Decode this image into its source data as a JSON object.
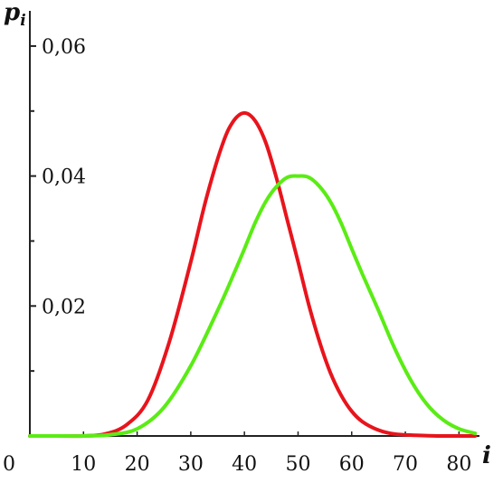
{
  "chart_data": {
    "type": "line",
    "xlabel": "i",
    "ylabel": {
      "base": "p",
      "subscript": "i"
    },
    "origin_label": "0",
    "xlim": [
      0,
      85
    ],
    "ylim": [
      0,
      0.065
    ],
    "x_ticks": [
      {
        "value": 10,
        "label": "10"
      },
      {
        "value": 20,
        "label": "20"
      },
      {
        "value": 30,
        "label": "30"
      },
      {
        "value": 40,
        "label": "40"
      },
      {
        "value": 50,
        "label": "50"
      },
      {
        "value": 60,
        "label": "60"
      },
      {
        "value": 70,
        "label": "70"
      },
      {
        "value": 80,
        "label": "80"
      }
    ],
    "y_ticks": [
      {
        "value": 0.02,
        "label": "0,02"
      },
      {
        "value": 0.04,
        "label": "0,04"
      },
      {
        "value": 0.06,
        "label": "0,06"
      }
    ],
    "y_minor_ticks": [
      0.01,
      0.03,
      0.05
    ],
    "grid": false,
    "series": [
      {
        "color": "#e8141c",
        "x": [
          0,
          5,
          10,
          14,
          18,
          22,
          26,
          30,
          33,
          36,
          38,
          40,
          42,
          44,
          46,
          48,
          50,
          52,
          54,
          56,
          58,
          60,
          62,
          65,
          68,
          72,
          76,
          80,
          83
        ],
        "y": [
          0,
          0,
          0,
          0.0003,
          0.0017,
          0.0055,
          0.0145,
          0.0268,
          0.0369,
          0.0451,
          0.0485,
          0.0497,
          0.0485,
          0.0451,
          0.0396,
          0.0332,
          0.0268,
          0.0202,
          0.0145,
          0.0098,
          0.0063,
          0.0038,
          0.0022,
          0.0009,
          0.0003,
          0.0001,
          0,
          0,
          0
        ]
      },
      {
        "color": "#5aec14",
        "x": [
          0,
          5,
          10,
          15,
          20,
          25,
          30,
          35,
          38,
          40,
          42,
          44,
          46,
          48,
          50,
          52,
          54,
          56,
          58,
          60,
          62,
          65,
          68,
          71,
          74,
          77,
          80,
          83
        ],
        "y": [
          0,
          0,
          0,
          0.0002,
          0.0011,
          0.0044,
          0.0108,
          0.0193,
          0.0249,
          0.0288,
          0.0328,
          0.0361,
          0.0384,
          0.0398,
          0.04,
          0.0398,
          0.0384,
          0.0361,
          0.0328,
          0.0288,
          0.0249,
          0.0193,
          0.0135,
          0.0086,
          0.0049,
          0.0025,
          0.0011,
          0.0004
        ]
      }
    ]
  }
}
